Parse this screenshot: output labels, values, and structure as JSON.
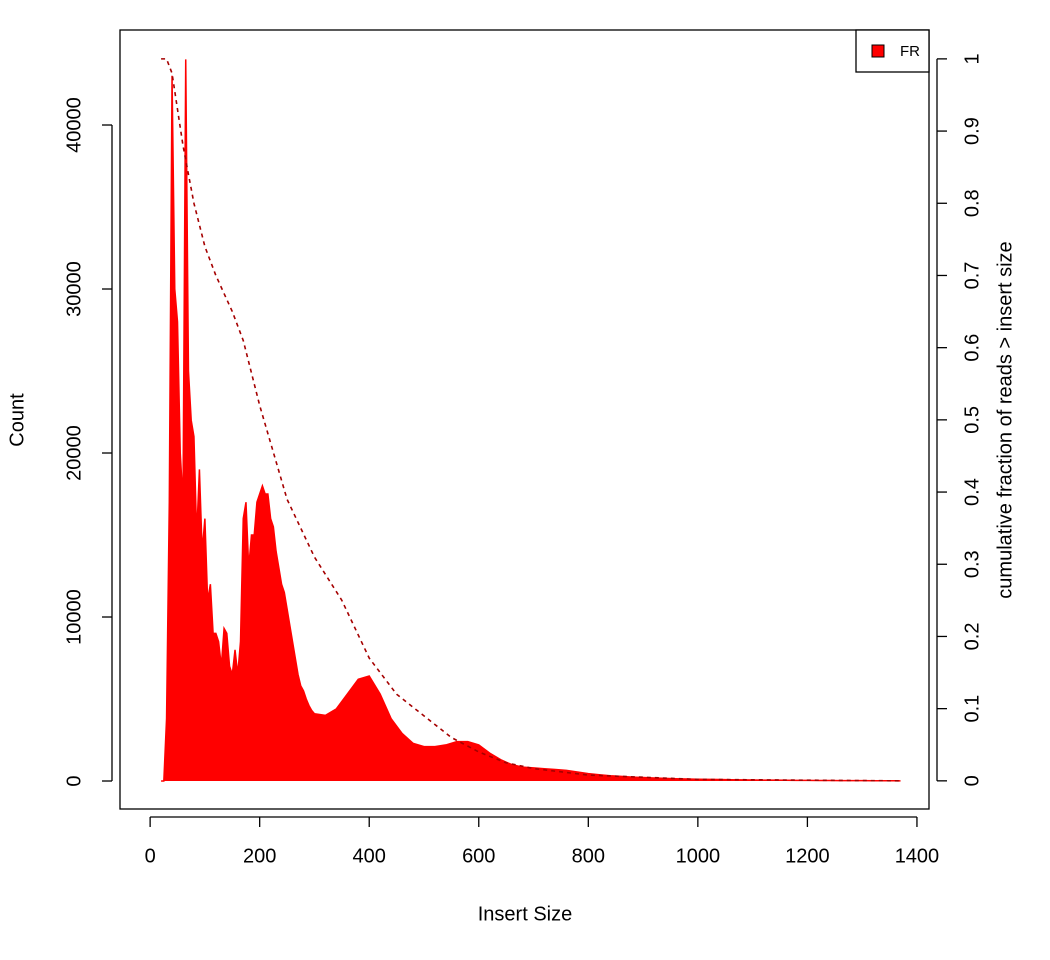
{
  "chart_data": {
    "type": "area",
    "x_label": "Insert Size",
    "y_label": "Count",
    "y2_label": "cumulative fraction of reads > insert size",
    "xlim": [
      -55,
      1422
    ],
    "xticks": [
      0,
      200,
      400,
      600,
      800,
      1000,
      1200,
      1400
    ],
    "ylim": [
      -1707,
      45793
    ],
    "yticks": [
      0,
      10000,
      20000,
      30000,
      40000
    ],
    "y2lim": [
      -0.039,
      1.04
    ],
    "y2ticks": [
      0,
      0.1,
      0.2,
      0.3,
      0.4,
      0.5,
      0.6,
      0.7,
      0.8,
      0.9,
      1
    ],
    "legend": "top-right",
    "series": [
      {
        "name": "FR",
        "color": "#ff0000",
        "x": [
          20,
          25,
          30,
          35,
          40,
          45,
          50,
          55,
          60,
          65,
          70,
          75,
          80,
          85,
          90,
          95,
          100,
          105,
          110,
          115,
          120,
          125,
          130,
          135,
          140,
          145,
          150,
          155,
          160,
          165,
          170,
          175,
          180,
          185,
          190,
          195,
          200,
          205,
          210,
          215,
          220,
          225,
          230,
          235,
          240,
          245,
          250,
          255,
          260,
          265,
          270,
          275,
          280,
          285,
          290,
          295,
          300,
          320,
          340,
          360,
          380,
          400,
          420,
          440,
          460,
          480,
          500,
          520,
          540,
          560,
          580,
          600,
          620,
          640,
          660,
          680,
          700,
          720,
          740,
          760,
          780,
          800,
          820,
          840,
          860,
          880,
          900,
          920,
          940,
          960,
          980,
          1000,
          1020,
          1040,
          1060,
          1080,
          1100,
          1120,
          1140,
          1160,
          1180,
          1200,
          1220,
          1240,
          1260,
          1280,
          1300,
          1320,
          1340,
          1360,
          1370
        ],
        "values": [
          0,
          0,
          3800,
          17000,
          43000,
          30000,
          28000,
          20000,
          17000,
          44000,
          25000,
          22000,
          21000,
          15000,
          19000,
          14000,
          16000,
          11000,
          12000,
          9000,
          9000,
          8500,
          7000,
          9300,
          9000,
          7000,
          6500,
          8000,
          6500,
          8500,
          16000,
          17000,
          13000,
          15000,
          15000,
          17000,
          17500,
          18000,
          17500,
          17500,
          16000,
          15500,
          14000,
          13000,
          12000,
          11500,
          10500,
          9500,
          8500,
          7500,
          6500,
          5800,
          5500,
          5000,
          4600,
          4300,
          4100,
          4000,
          4400,
          5300,
          6200,
          6400,
          5300,
          3800,
          2900,
          2300,
          2100,
          2100,
          2200,
          2400,
          2400,
          2200,
          1700,
          1300,
          1000,
          850,
          800,
          750,
          700,
          650,
          550,
          450,
          380,
          320,
          280,
          240,
          210,
          180,
          160,
          140,
          120,
          110,
          100,
          90,
          80,
          70,
          60,
          55,
          50,
          45,
          40,
          35,
          30,
          28,
          25,
          22,
          20,
          18,
          15,
          12,
          10
        ]
      },
      {
        "name": "cumulative",
        "color": "#a50000",
        "axis": "y2",
        "x": [
          20,
          30,
          40,
          50,
          60,
          80,
          100,
          120,
          150,
          170,
          200,
          250,
          300,
          350,
          400,
          450,
          500,
          550,
          600,
          650,
          700,
          800,
          1000,
          1370
        ],
        "values": [
          1,
          1,
          0.98,
          0.93,
          0.88,
          0.8,
          0.74,
          0.7,
          0.65,
          0.61,
          0.52,
          0.39,
          0.31,
          0.25,
          0.17,
          0.12,
          0.09,
          0.06,
          0.04,
          0.025,
          0.017,
          0.008,
          0.002,
          0
        ]
      }
    ]
  }
}
